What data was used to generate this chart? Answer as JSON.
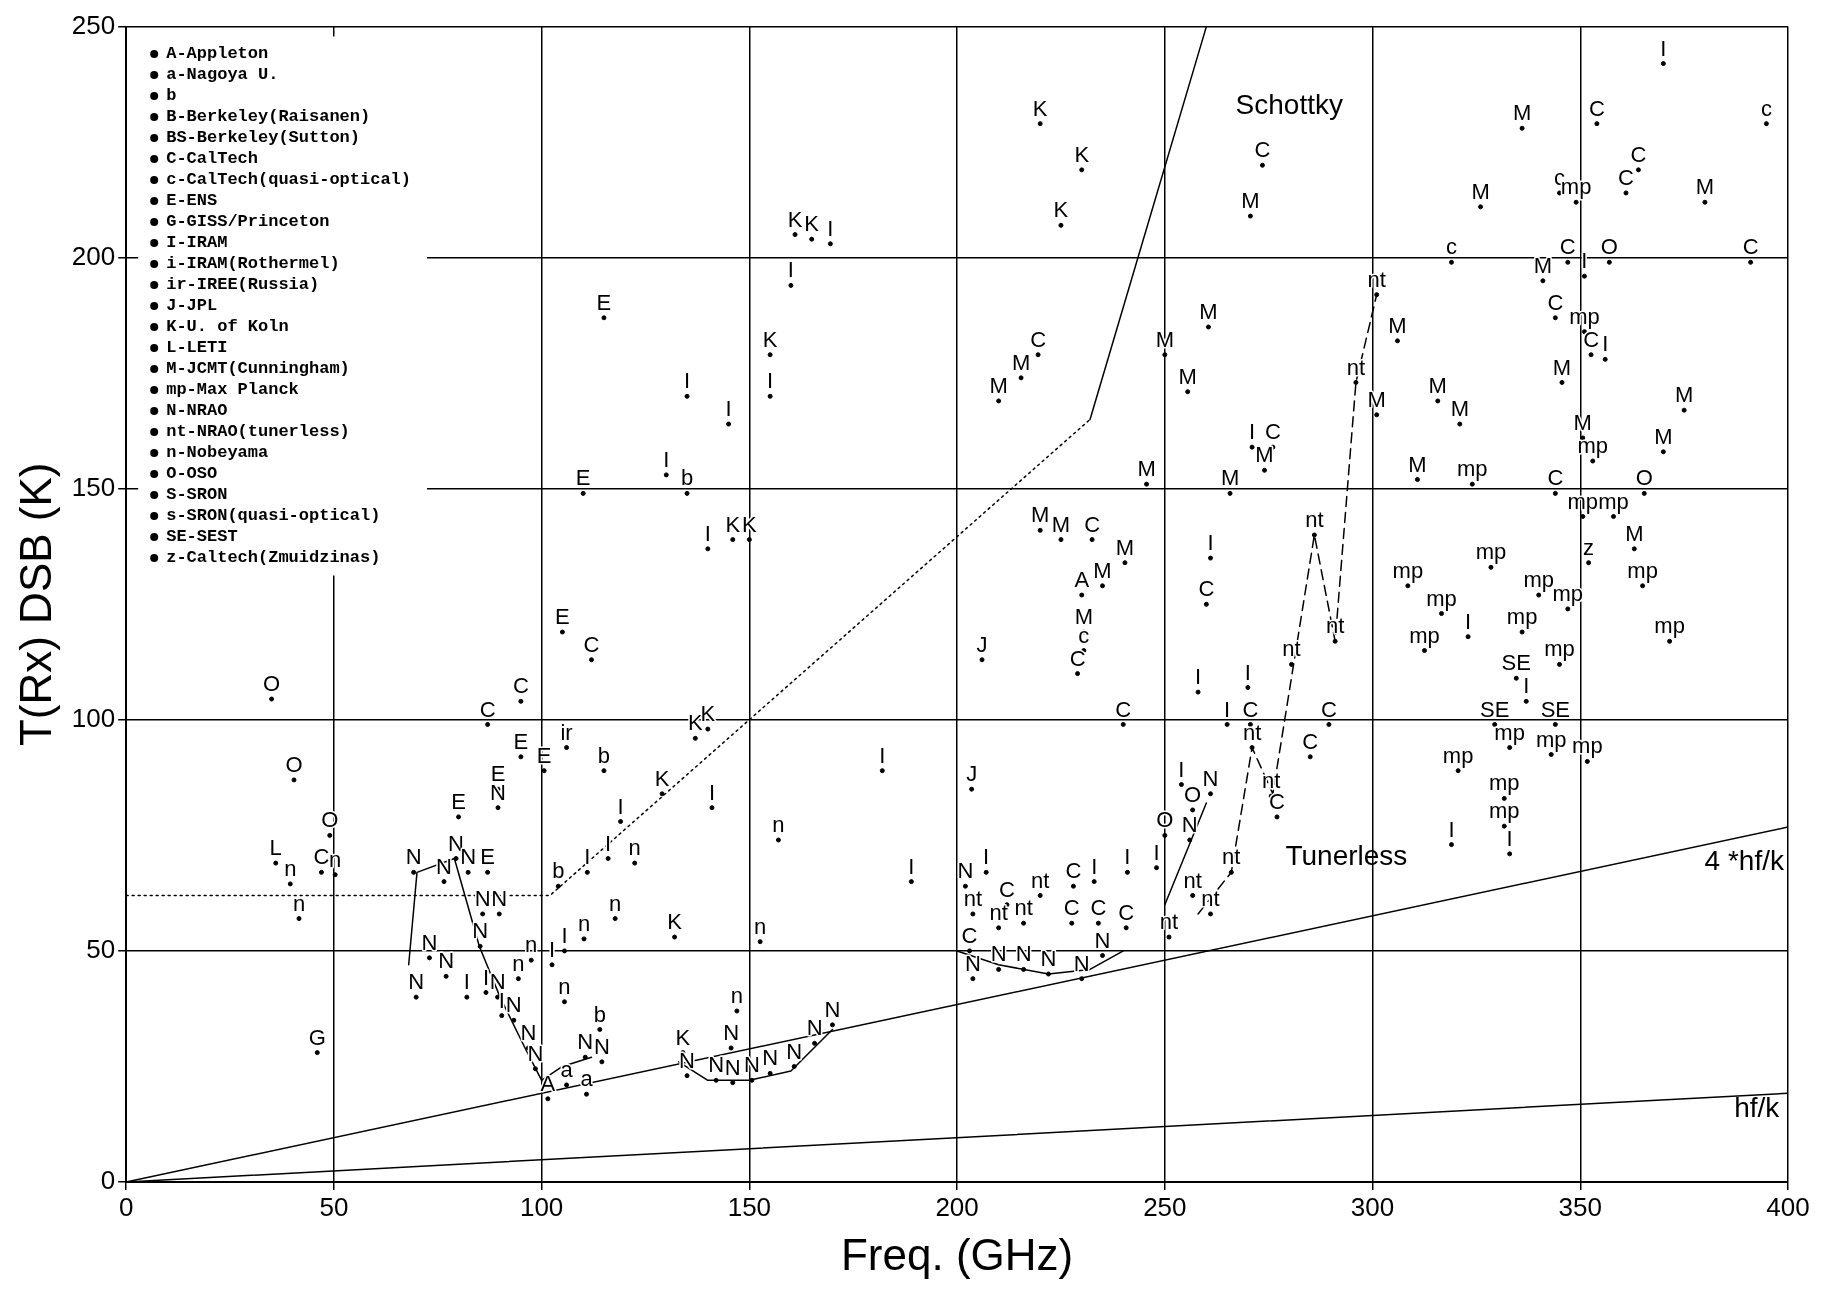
{
  "chart_data": {
    "type": "scatter",
    "xlabel": "Freq. (GHz)",
    "ylabel": "T(Rx) DSB (K)",
    "xlim": [
      0,
      400
    ],
    "xticks": [
      0,
      50,
      100,
      150,
      200,
      250,
      300,
      350,
      400
    ],
    "ylim": [
      0,
      250
    ],
    "yticks": [
      0,
      50,
      100,
      150,
      200,
      250
    ],
    "grid": true,
    "legend": "top left",
    "series": [
      {
        "name": "A-Appleton",
        "color": "#000000",
        "x": [
          230,
          101.5
        ],
        "values": [
          127,
          18
        ],
        "value_labels": [
          "A",
          "A"
        ]
      },
      {
        "name": "a-Nagoya U.",
        "color": "#000000",
        "x": [
          106,
          110.8
        ],
        "values": [
          21,
          19
        ],
        "value_labels": [
          "a",
          "a"
        ]
      },
      {
        "name": "b",
        "color": "#000000",
        "x": [
          135,
          115,
          114,
          104
        ],
        "values": [
          149,
          89,
          33,
          64
        ],
        "value_labels": [
          "b",
          "b",
          "b",
          "b"
        ]
      },
      {
        "name": "B-Berkeley(Raisanen)",
        "color": "#000000"
      },
      {
        "name": "BS-Berkeley(Sutton)",
        "color": "#000000"
      },
      {
        "name": "C-CalTech",
        "color": "#000000",
        "x": [
          354,
          364,
          361,
          273.5,
          347,
          391,
          344,
          352.6,
          219.5,
          276,
          344,
          232.5,
          260,
          229,
          240,
          270.6,
          289.5,
          285,
          277,
          112,
          95,
          87,
          47,
          228,
          212,
          227.6,
          234,
          203,
          240.7
        ],
        "values": [
          229,
          219,
          214,
          220,
          199,
          199,
          187,
          179,
          179,
          159,
          149,
          139,
          125,
          110,
          99,
          99,
          99,
          92,
          79,
          113,
          104,
          99,
          67,
          64,
          60,
          56,
          56,
          50,
          55
        ],
        "value_labels": [
          "C",
          "C",
          "C",
          "C",
          "C",
          "C",
          "C",
          "C",
          "C",
          "C",
          "C",
          "C",
          "C",
          "C",
          "C",
          "C",
          "C",
          "C",
          "C",
          "C",
          "C",
          "C",
          "C",
          "C",
          "C",
          "C",
          "C",
          "C",
          "C"
        ]
      },
      {
        "name": "c-CalTech(quasi-optical)",
        "color": "#000000",
        "x": [
          394.8,
          319,
          230.5,
          345
        ],
        "values": [
          229,
          199,
          115,
          214
        ],
        "value_labels": [
          "c",
          "c",
          "c",
          "c"
        ]
      },
      {
        "name": "E-ENS",
        "color": "#000000",
        "x": [
          115,
          110,
          105,
          95,
          89.5,
          100.6,
          80,
          87
        ],
        "values": [
          187,
          149,
          119,
          92,
          85,
          89,
          79,
          67
        ],
        "value_labels": [
          "E",
          "E",
          "E",
          "E",
          "E",
          "E",
          "E",
          "E"
        ]
      },
      {
        "name": "G-GISS/Princeton",
        "color": "#000000",
        "x": [
          46
        ],
        "values": [
          28
        ],
        "value_labels": [
          "G"
        ]
      },
      {
        "name": "I-IRAM",
        "color": "#000000",
        "x": [
          370,
          169.5,
          160,
          135,
          155,
          145,
          130,
          140,
          261,
          258,
          270,
          265,
          271,
          319,
          333,
          356,
          351,
          182,
          189,
          207,
          233,
          241,
          248,
          254,
          141,
          119,
          116,
          111,
          105.5,
          102.5,
          82,
          86.6,
          90.4,
          323,
          337
        ],
        "values": [
          242,
          203,
          194,
          170,
          170,
          164,
          153,
          137,
          135,
          106,
          107,
          99,
          159,
          73,
          71,
          178,
          196,
          89,
          65,
          67,
          65,
          67,
          68,
          86,
          81,
          78,
          70,
          67,
          50,
          47,
          40,
          41,
          36,
          118,
          104
        ],
        "value_labels": [
          "I",
          "I",
          "I",
          "I",
          "I",
          "I",
          "I",
          "I",
          "I",
          "I",
          "I",
          "I",
          "I",
          "I",
          "I",
          "I",
          "I",
          "I",
          "I",
          "I",
          "I",
          "I",
          "I",
          "I",
          "I",
          "I",
          "I",
          "I",
          "I",
          "I",
          "I",
          "I",
          "I",
          "I",
          "I"
        ]
      },
      {
        "name": "i-IRAM(Rothermel)",
        "color": "#000000"
      },
      {
        "name": "ir-IREE(Russia)",
        "color": "#000000",
        "x": [
          106
        ],
        "values": [
          94
        ],
        "value_labels": [
          "ir"
        ]
      },
      {
        "name": "J-JPL",
        "color": "#000000",
        "x": [
          206,
          203.5
        ],
        "values": [
          113,
          85
        ],
        "value_labels": [
          "J",
          "J"
        ]
      },
      {
        "name": "K-U. of Koln",
        "color": "#000000",
        "x": [
          220,
          230,
          225,
          161,
          165,
          155,
          146,
          150,
          137,
          140,
          129,
          132,
          134
        ],
        "values": [
          229,
          219,
          207,
          205,
          204,
          179,
          139,
          139,
          96,
          98,
          84,
          53,
          28
        ],
        "value_labels": [
          "K",
          "K",
          "K",
          "K",
          "K",
          "K",
          "K",
          "K",
          "K",
          "K",
          "K",
          "K",
          "K"
        ]
      },
      {
        "name": "L-LETI",
        "color": "#000000",
        "x": [
          36
        ],
        "values": [
          69
        ],
        "value_labels": [
          "L"
        ]
      },
      {
        "name": "M-JCMT(Cunningham)",
        "color": "#000000",
        "x": [
          336,
          270.6,
          326,
          380,
          341,
          306,
          260.5,
          250,
          255.5,
          210,
          215.4,
          301,
          315.7,
          321,
          375,
          345.6,
          350.6,
          370,
          274,
          245.6,
          265.7,
          310.8,
          220,
          225,
          240.4,
          235,
          230.5,
          363
        ],
        "values": [
          228,
          209,
          211,
          212,
          195,
          182,
          185,
          179,
          171,
          169,
          174,
          166,
          169,
          164,
          167,
          173,
          161,
          158,
          154,
          151,
          149,
          152,
          141,
          139,
          134,
          129,
          119,
          137
        ],
        "value_labels": [
          "M",
          "M",
          "M",
          "M",
          "M",
          "M",
          "M",
          "M",
          "M",
          "M",
          "M",
          "M",
          "M",
          "M",
          "M",
          "M",
          "M",
          "M",
          "M",
          "M",
          "M",
          "M",
          "M",
          "M",
          "M",
          "M",
          "M",
          "M"
        ]
      },
      {
        "name": "mp-Max Planck",
        "color": "#000000",
        "x": [
          349,
          351,
          353,
          324,
          350.6,
          358,
          308.5,
          328.5,
          340,
          365,
          316.6,
          336,
          347,
          312.5,
          371.5,
          345,
          333,
          351.7,
          320.6,
          331.7,
          331.7,
          343
        ],
        "values": [
          212,
          184,
          156,
          151,
          144,
          144,
          129,
          133,
          127,
          129,
          123,
          119,
          124,
          115,
          117,
          112,
          94,
          91,
          89,
          83,
          77,
          92.5
        ],
        "value_labels": [
          "mp",
          "mp",
          "mp",
          "mp",
          "mp",
          "mp",
          "mp",
          "mp",
          "mp",
          "mp",
          "mp",
          "mp",
          "mp",
          "mp",
          "mp",
          "mp",
          "mp",
          "mp",
          "mp",
          "mp",
          "mp",
          "mp"
        ]
      },
      {
        "name": "N-NRAO",
        "color": "#000000",
        "x": [
          73,
          69.8,
          77,
          69.2,
          76.5,
          79.4,
          82.3,
          85.8,
          89.8,
          85.2,
          89.4,
          93.3,
          96.8,
          98.5,
          110.5,
          114.5,
          89.5,
          135,
          142,
          146,
          150.6,
          155,
          160.8,
          165.7,
          170,
          145.6,
          202,
          203.8,
          210,
          216,
          222,
          230,
          235,
          256,
          261
        ],
        "values": [
          48.5,
          40,
          44.5,
          67,
          65,
          70,
          67,
          58,
          58,
          51,
          40,
          35,
          29,
          24.5,
          27,
          26,
          81,
          23,
          22,
          21.5,
          22,
          23.5,
          25,
          30,
          34,
          29,
          64,
          44,
          46,
          46,
          45,
          44,
          49,
          74,
          84
        ],
        "value_labels": [
          "N",
          "N",
          "N",
          "N",
          "N",
          "N",
          "N",
          "N",
          "N",
          "N",
          "N",
          "N",
          "N",
          "N",
          "N",
          "N",
          "N",
          "N",
          "N",
          "N",
          "N",
          "N",
          "N",
          "N",
          "N",
          "N",
          "N",
          "N",
          "N",
          "N",
          "N",
          "N",
          "N",
          "N",
          "N"
        ]
      },
      {
        "name": "nt-NRAO(tunerless)",
        "color": "#000000",
        "x": [
          301,
          296,
          286,
          291,
          280.5,
          271,
          275.6,
          266,
          256.7,
          261,
          203.8,
          210,
          220,
          216,
          251
        ],
        "values": [
          192,
          173,
          140,
          117,
          112,
          94,
          83.5,
          67,
          62,
          58,
          58,
          55,
          62,
          56,
          53
        ],
        "value_labels": [
          "nt",
          "nt",
          "nt",
          "nt",
          "nt",
          "nt",
          "nt",
          "nt",
          "nt",
          "nt",
          "nt",
          "nt",
          "nt",
          "nt",
          "nt"
        ]
      },
      {
        "name": "n-Nobeyama",
        "color": "#000000",
        "x": [
          39.5,
          41.6,
          50.3,
          122.4,
          157,
          117.7,
          110.2,
          97.5,
          105.5,
          94.4,
          147,
          152.6
        ],
        "values": [
          64.5,
          57,
          66.5,
          69,
          74,
          57,
          52.6,
          48,
          39,
          44,
          37,
          52
        ],
        "value_labels": [
          "n",
          "n",
          "n",
          "n",
          "n",
          "n",
          "n",
          "n",
          "n",
          "n",
          "n",
          "n"
        ]
      },
      {
        "name": "O-OSO",
        "color": "#000000",
        "x": [
          35,
          40.4,
          49,
          256.7,
          250,
          365.4,
          357
        ],
        "values": [
          104.5,
          87,
          75,
          80.5,
          75,
          149,
          199
        ],
        "value_labels": [
          "O",
          "O",
          "O",
          "O",
          "O",
          "O",
          "O"
        ]
      },
      {
        "name": "S-SRON",
        "color": "#000000"
      },
      {
        "name": "s-SRON(quasi-optical)",
        "color": "#000000"
      },
      {
        "name": "SE-SEST",
        "color": "#000000",
        "x": [
          334.6,
          329.4,
          344
        ],
        "values": [
          109,
          99,
          99
        ],
        "value_labels": [
          "SE",
          "SE",
          "SE"
        ]
      },
      {
        "name": "z-Caltech(Zmuidzinas)",
        "color": "#000000",
        "x": [
          352
        ],
        "values": [
          134
        ],
        "value_labels": [
          "z"
        ]
      },
      {
        "type": "line",
        "color": "#000000",
        "line_style": "solid",
        "x": [
          0,
          400
        ],
        "values": [
          0,
          19.2
        ]
      },
      {
        "type": "line",
        "color": "#000000",
        "line_style": "solid",
        "x": [
          0,
          400
        ],
        "values": [
          0,
          76.8
        ]
      },
      {
        "type": "line",
        "color": "#000000",
        "line_style": "dotted",
        "x": [
          0,
          102,
          232
        ],
        "values": [
          62,
          62,
          165
        ]
      },
      {
        "type": "line",
        "color": "#000000",
        "line_style": "solid",
        "x": [
          232,
          260
        ],
        "values": [
          165,
          250
        ]
      },
      {
        "type": "line",
        "color": "#000000",
        "line_style": "solid",
        "x": [
          68,
          70,
          79,
          85,
          90,
          96,
          100,
          105,
          112,
          120,
          133,
          140,
          150,
          160,
          170,
          180,
          200,
          210,
          222,
          232,
          240,
          245,
          250,
          260
        ],
        "values": [
          47,
          67,
          70,
          51,
          40,
          29,
          22,
          25,
          27,
          null,
          26,
          22,
          22,
          24,
          33,
          null,
          50,
          47,
          45,
          46,
          50,
          null,
          60,
          82
        ]
      },
      {
        "type": "line",
        "color": "#000000",
        "line_style": "dashed",
        "x": [
          258,
          266,
          271,
          276,
          281,
          286,
          291,
          296,
          301
        ],
        "values": [
          58,
          67,
          94,
          84,
          112,
          140,
          117,
          173,
          192
        ]
      }
    ],
    "annotations": [
      {
        "text": "Schottky",
        "x": 255,
        "y": 235
      },
      {
        "text": "Tunerless",
        "x": 267,
        "y": 72.4
      },
      {
        "text": "4 *hf/k",
        "x": 372,
        "y": 71.4
      },
      {
        "text": "hf/k",
        "x": 375,
        "y": 18
      }
    ]
  }
}
